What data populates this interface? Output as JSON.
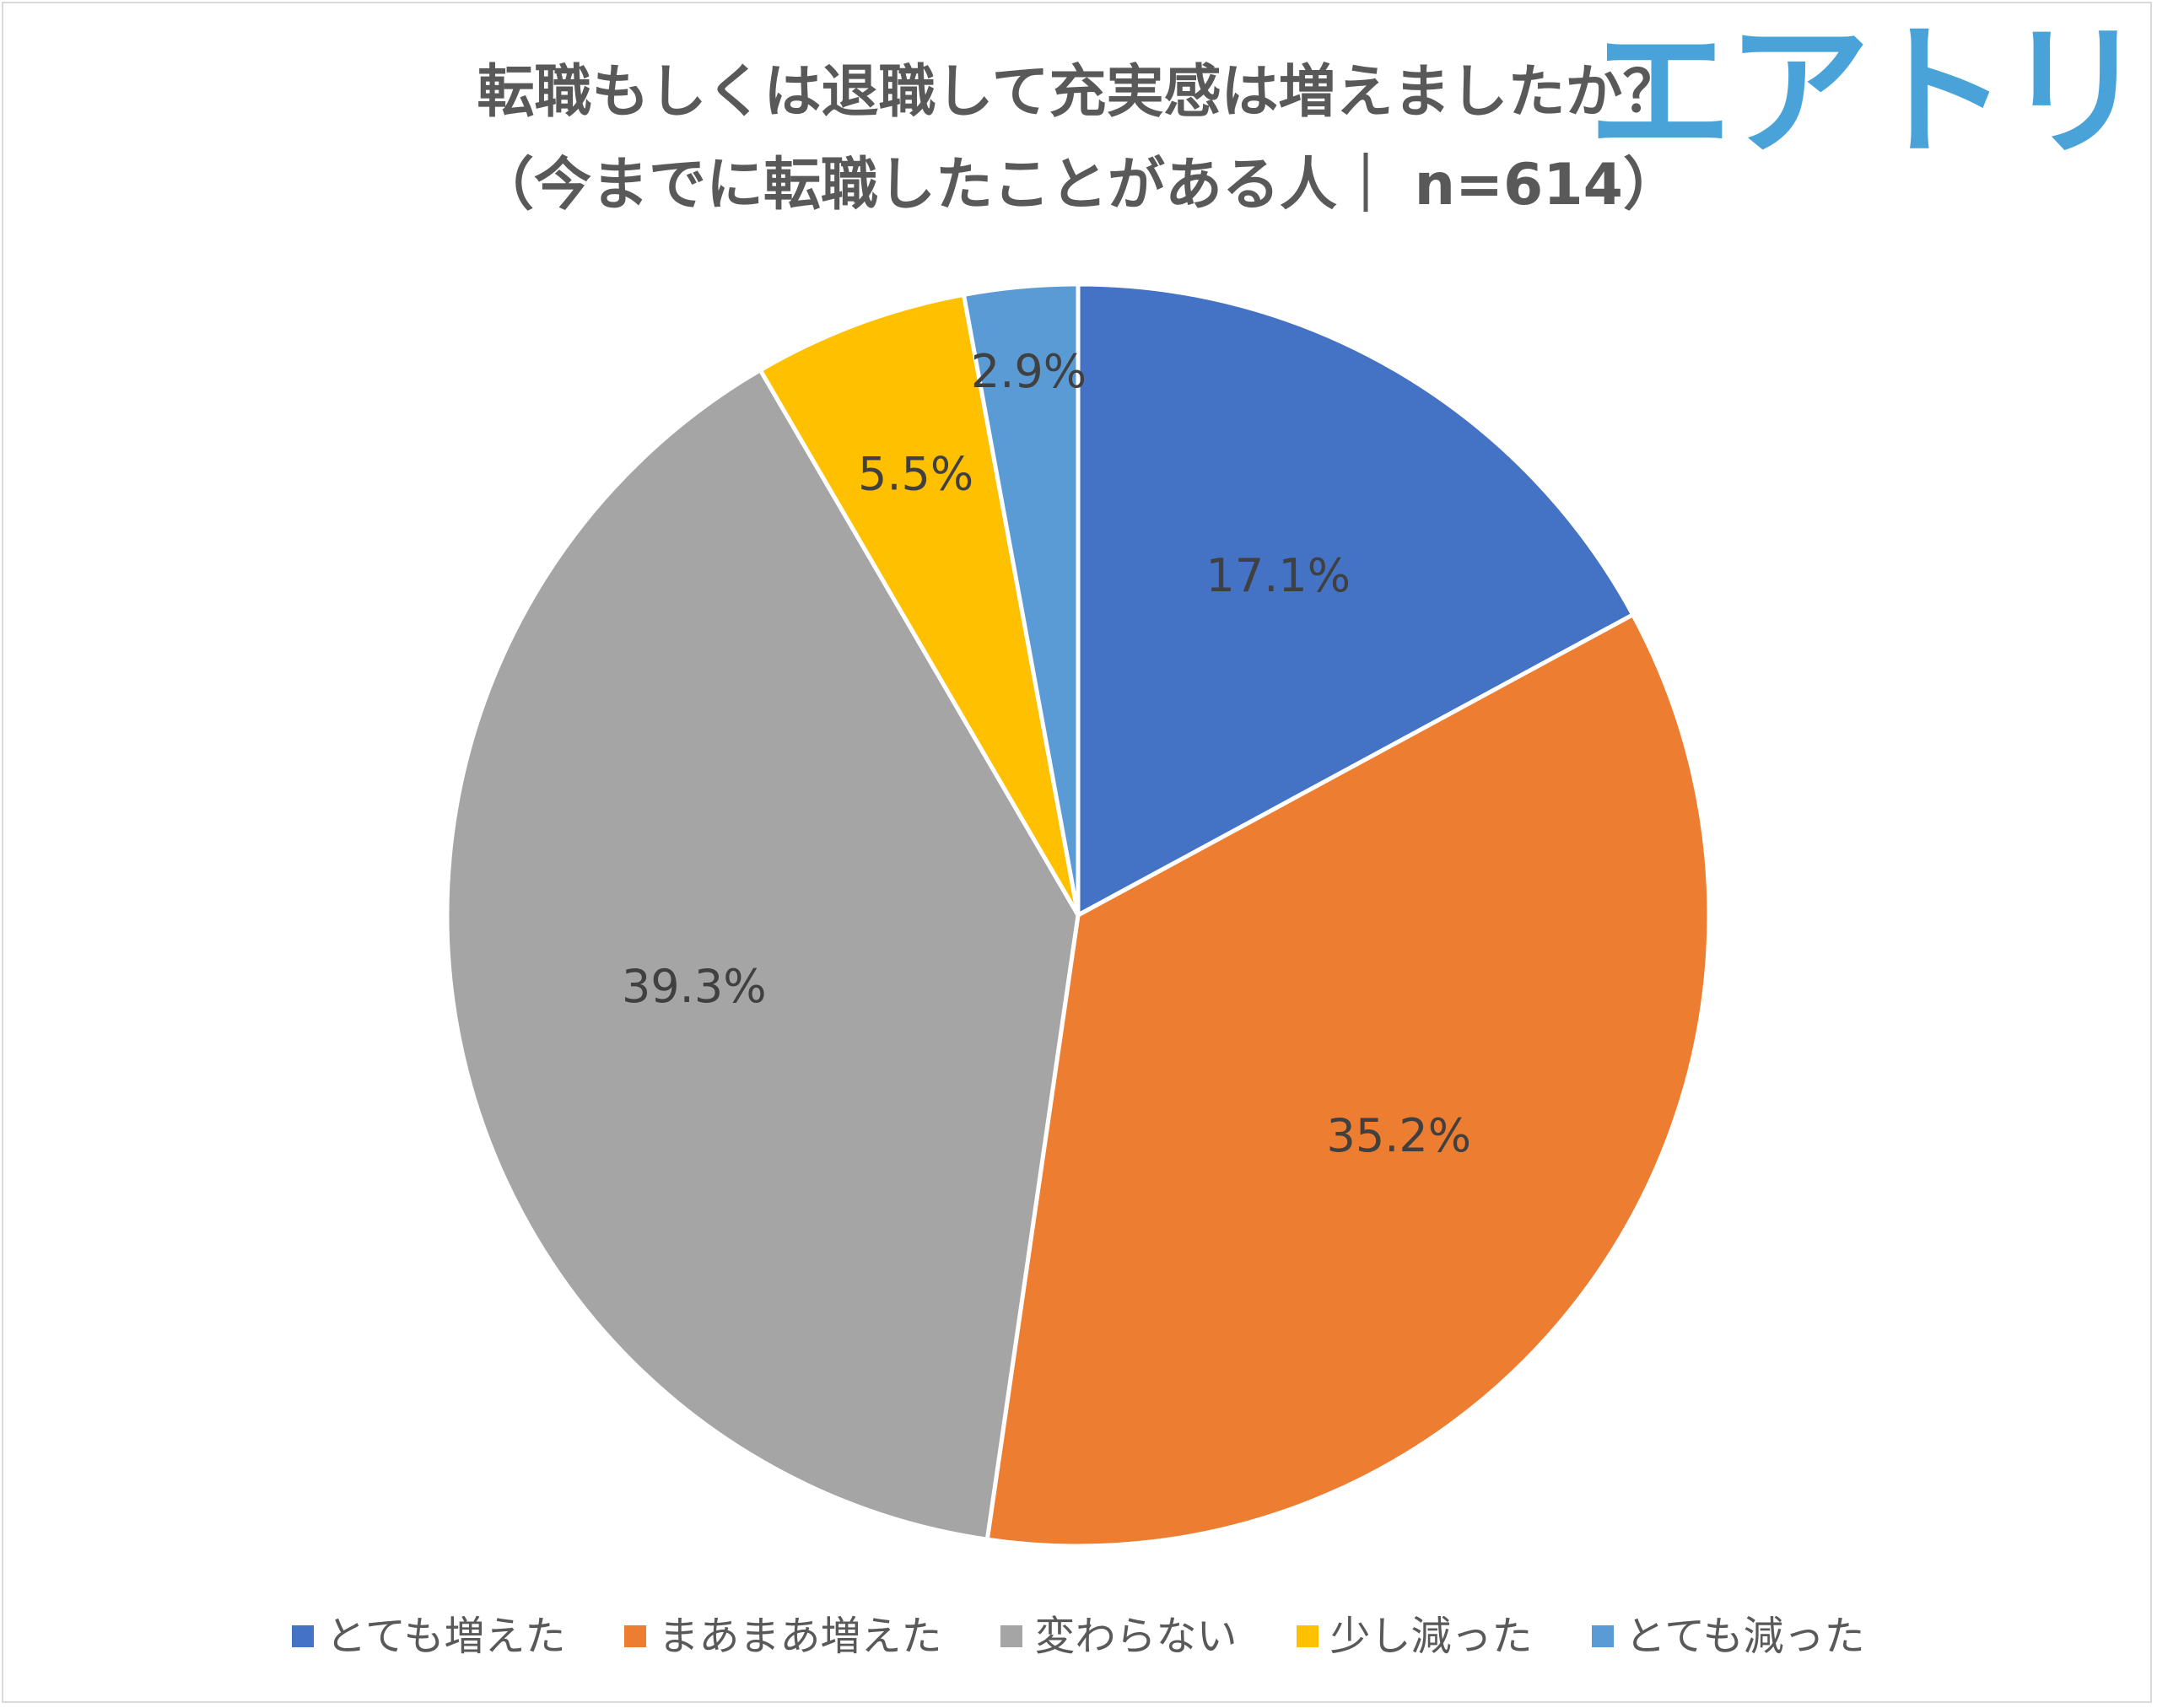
{
  "title_line1": "転職もしくは退職して充実感は増えましたか？",
  "title_line2": "（今までに転職したことがある人｜ n=614）",
  "logo_text": "エアトリ",
  "chart_data": {
    "type": "pie",
    "title": "転職もしくは退職して充実感は増えましたか？",
    "subtitle": "（今までに転職したことがある人｜ n=614）",
    "categories": [
      "とても増えた",
      "まあまあ増えた",
      "変わらない",
      "少し減った",
      "とても減った"
    ],
    "values": [
      17.1,
      35.2,
      39.3,
      5.5,
      2.9
    ],
    "labels": [
      "17.1%",
      "35.2%",
      "39.3%",
      "5.5%",
      "2.9%"
    ],
    "colors": [
      "#4472c4",
      "#ed7d31",
      "#a5a5a5",
      "#ffc000",
      "#5b9bd5"
    ],
    "start_angle": "12 o'clock",
    "direction": "clockwise",
    "legend_position": "bottom"
  }
}
